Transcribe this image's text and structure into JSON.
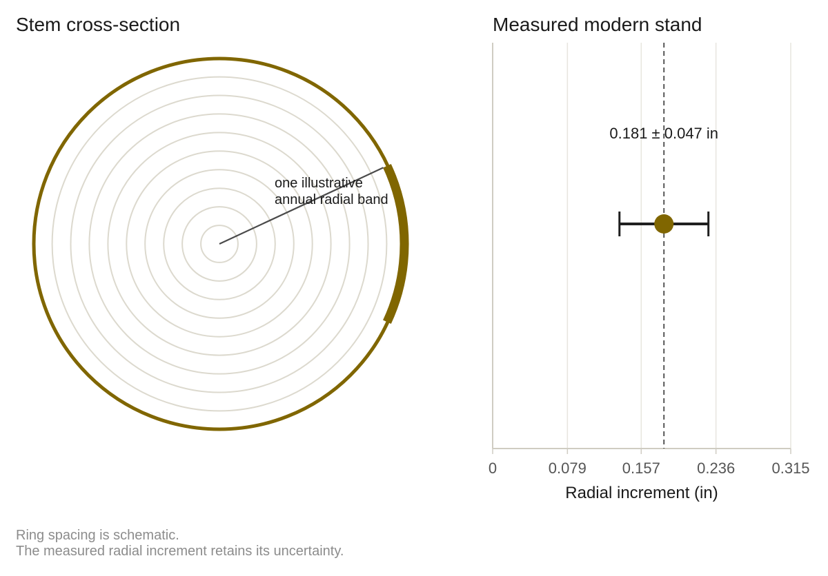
{
  "colors": {
    "accent": "#806600",
    "ring": "#dcd9ce",
    "grid": "#e7e5de",
    "axis": "#cfccc2",
    "ref_line": "#555555",
    "error_bar": "#1f1f1f",
    "caption": "#8c8c8c"
  },
  "chart_data": [
    {
      "type": "diagram",
      "title": "Stem cross-section",
      "rings": 9,
      "annotation": [
        "one illustrative",
        "annual radial band"
      ]
    },
    {
      "type": "scatter",
      "title": "Measured modern stand",
      "xlabel": "Radial increment (in)",
      "xlim": [
        0,
        0.315
      ],
      "xticks": [
        0,
        0.079,
        0.157,
        0.236,
        0.315
      ],
      "xtick_labels": [
        "0",
        "0.079",
        "0.157",
        "0.236",
        "0.315"
      ],
      "grid": true,
      "estimate": {
        "value": 0.181,
        "error": 0.047,
        "label": "0.181 ± 0.047 in"
      },
      "reference_line": 0.181
    }
  ],
  "caption": {
    "line1": "Ring spacing is schematic.",
    "line2": "The measured radial increment retains its uncertainty."
  }
}
